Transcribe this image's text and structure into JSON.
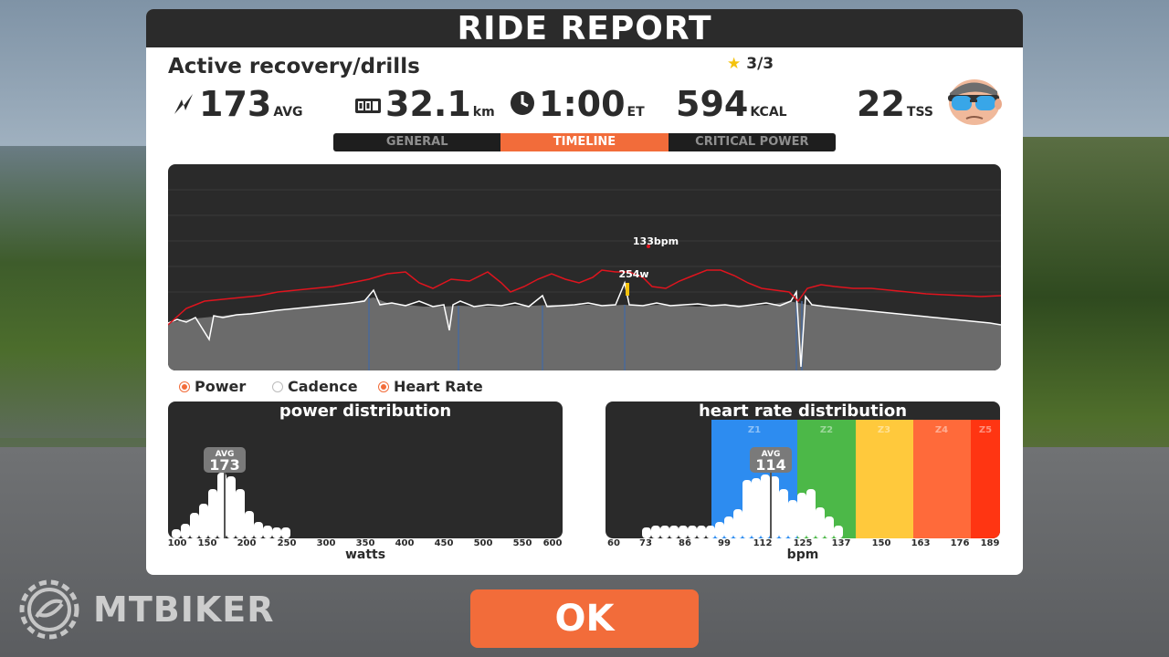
{
  "header": {
    "title": "RIDE REPORT"
  },
  "workout": {
    "name": "Active recovery/drills",
    "stars": "3/3"
  },
  "stats": {
    "power": {
      "value": "173",
      "unit": "AVG"
    },
    "distance": {
      "value": "32.1",
      "unit": "km"
    },
    "time": {
      "value": "1:00",
      "unit": "ET"
    },
    "calories": {
      "value": "594",
      "unit": "KCAL"
    },
    "tss": {
      "value": "22",
      "unit": "TSS"
    }
  },
  "tabs": [
    {
      "label": "GENERAL",
      "active": false
    },
    {
      "label": "TIMELINE",
      "active": true
    },
    {
      "label": "CRITICAL POWER",
      "active": false
    }
  ],
  "timeline": {
    "hr_marker": "133bpm",
    "power_marker": "254w",
    "colors": {
      "power": "#ffffff",
      "heart_rate": "#e0141e",
      "area": "#6b6b6b"
    }
  },
  "legend": [
    {
      "label": "Power",
      "on": true
    },
    {
      "label": "Cadence",
      "on": false
    },
    {
      "label": "Heart Rate",
      "on": true
    }
  ],
  "power_distribution": {
    "title": "power distribution",
    "avg_label": "AVG",
    "avg_value": "173",
    "xlabel": "watts",
    "ticks": [
      "100",
      "150",
      "200",
      "250",
      "300",
      "350",
      "400",
      "450",
      "500",
      "550",
      "600"
    ]
  },
  "hr_distribution": {
    "title": "heart rate distribution",
    "avg_label": "AVG",
    "avg_value": "114",
    "xlabel": "bpm",
    "ticks": [
      "60",
      "73",
      "86",
      "99",
      "112",
      "125",
      "137",
      "150",
      "163",
      "176",
      "189"
    ],
    "zones": [
      {
        "label": "Z1",
        "color": "#2d8cf0"
      },
      {
        "label": "Z2",
        "color": "#4cb848"
      },
      {
        "label": "Z3",
        "color": "#ffc93c"
      },
      {
        "label": "Z4",
        "color": "#ff6a3a"
      },
      {
        "label": "Z5",
        "color": "#ff3512"
      }
    ]
  },
  "ok_button": {
    "label": "OK"
  },
  "brand": {
    "text": "MTBIKER"
  }
}
